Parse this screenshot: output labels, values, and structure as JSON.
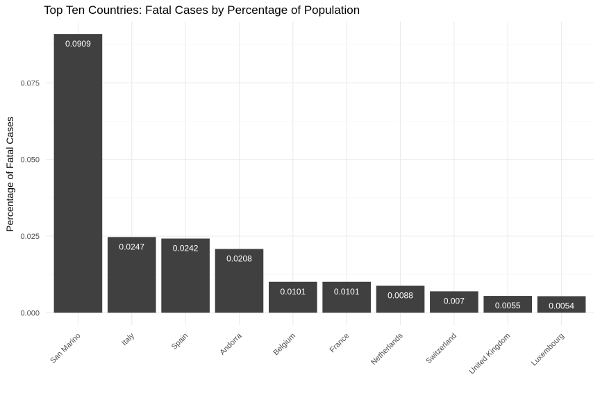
{
  "chart_data": {
    "type": "bar",
    "title": "Top Ten Countries: Fatal Cases by Percentage of Population",
    "xlabel": "",
    "ylabel": "Percentage of Fatal Cases",
    "categories": [
      "San Marino",
      "Italy",
      "Spain",
      "Andorra",
      "Belgium",
      "France",
      "Netherlands",
      "Switzerland",
      "United Kingdom",
      "Luxembourg"
    ],
    "values": [
      0.0909,
      0.0247,
      0.0242,
      0.0208,
      0.0101,
      0.0101,
      0.0088,
      0.007,
      0.0055,
      0.0054
    ],
    "value_labels": [
      "0.0909",
      "0.0247",
      "0.0242",
      "0.0208",
      "0.0101",
      "0.0101",
      "0.0088",
      "0.007",
      "0.0055",
      "0.0054"
    ],
    "y_ticks": [
      0,
      0.025,
      0.05,
      0.075
    ],
    "y_tick_labels": [
      "0.000",
      "0.025",
      "0.050",
      "0.075"
    ],
    "ylim": [
      -0.004,
      0.095
    ],
    "grid": true,
    "legend": "none",
    "colors": {
      "bar": "#404040",
      "grid_major": "#ebebeb",
      "grid_minor": "#f4f4f4",
      "bar_label": "#ffffff"
    }
  }
}
